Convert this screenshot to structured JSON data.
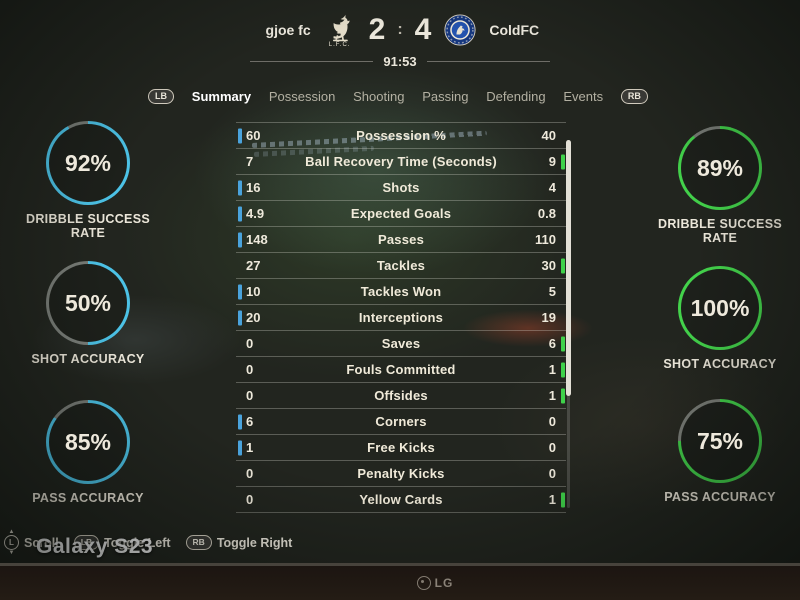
{
  "scoreboard": {
    "home_team": "gjoe fc",
    "away_team": "ColdFC",
    "home_score": "2",
    "score_separator": ":",
    "away_score": "4",
    "match_time": "91:53",
    "home_crest_caption": "L.F.C."
  },
  "tabs": {
    "left_bumper": "LB",
    "right_bumper": "RB",
    "items": [
      {
        "label": "Summary",
        "active": true
      },
      {
        "label": "Possession",
        "active": false
      },
      {
        "label": "Shooting",
        "active": false
      },
      {
        "label": "Passing",
        "active": false
      },
      {
        "label": "Defending",
        "active": false
      },
      {
        "label": "Events",
        "active": false
      }
    ]
  },
  "stats": {
    "home_bar_color": "#4aa3dc",
    "away_bar_color": "#3fd24a",
    "rows": [
      {
        "label": "Possession %",
        "home": "60",
        "away": "40",
        "leader": "home"
      },
      {
        "label": "Ball Recovery Time (Seconds)",
        "home": "7",
        "away": "9",
        "leader": "away"
      },
      {
        "label": "Shots",
        "home": "16",
        "away": "4",
        "leader": "home"
      },
      {
        "label": "Expected Goals",
        "home": "4.9",
        "away": "0.8",
        "leader": "home"
      },
      {
        "label": "Passes",
        "home": "148",
        "away": "110",
        "leader": "home"
      },
      {
        "label": "Tackles",
        "home": "27",
        "away": "30",
        "leader": "away"
      },
      {
        "label": "Tackles Won",
        "home": "10",
        "away": "5",
        "leader": "home"
      },
      {
        "label": "Interceptions",
        "home": "20",
        "away": "19",
        "leader": "home"
      },
      {
        "label": "Saves",
        "home": "0",
        "away": "6",
        "leader": "away"
      },
      {
        "label": "Fouls Committed",
        "home": "0",
        "away": "1",
        "leader": "away"
      },
      {
        "label": "Offsides",
        "home": "0",
        "away": "1",
        "leader": "away"
      },
      {
        "label": "Corners",
        "home": "6",
        "away": "0",
        "leader": "home"
      },
      {
        "label": "Free Kicks",
        "home": "1",
        "away": "0",
        "leader": "home"
      },
      {
        "label": "Penalty Kicks",
        "home": "0",
        "away": "0",
        "leader": "none"
      },
      {
        "label": "Yellow Cards",
        "home": "0",
        "away": "1",
        "leader": "away"
      }
    ]
  },
  "left_panel": {
    "circles": [
      {
        "value": "92%",
        "label": "DRIBBLE SUCCESS RATE",
        "percent": 92,
        "accent": "#4cc2e6"
      },
      {
        "value": "50%",
        "label": "SHOT ACCURACY",
        "percent": 50,
        "accent": "#4cc2e6"
      },
      {
        "value": "85%",
        "label": "PASS ACCURACY",
        "percent": 85,
        "accent": "#4cc2e6"
      }
    ]
  },
  "right_panel": {
    "circles": [
      {
        "value": "89%",
        "label": "DRIBBLE SUCCESS RATE",
        "percent": 89,
        "accent": "#43d24b"
      },
      {
        "value": "100%",
        "label": "SHOT ACCURACY",
        "percent": 100,
        "accent": "#43d24b"
      },
      {
        "value": "75%",
        "label": "PASS ACCURACY",
        "percent": 75,
        "accent": "#43d24b"
      }
    ]
  },
  "footer": {
    "scroll": {
      "icon": "L",
      "label": "Scroll",
      "up_arrow": "▲",
      "down_arrow": "▼"
    },
    "toggle_left": {
      "icon": "LB",
      "label": "Toggle Left"
    },
    "toggle_right": {
      "icon": "RB",
      "label": "Toggle Right"
    }
  },
  "watermark": "Galaxy S23",
  "monitor": {
    "brand": "LG"
  }
}
